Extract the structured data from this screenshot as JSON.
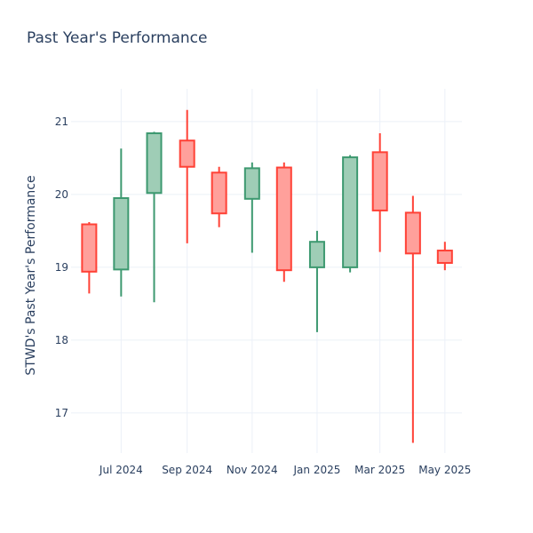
{
  "chart_data": {
    "type": "candlestick",
    "title": "Past Year's Performance",
    "ylabel": "STWD's Past Year's Performance",
    "xlabel": "",
    "ylim": [
      16.45,
      21.45
    ],
    "yticks": [
      17,
      18,
      19,
      20,
      21
    ],
    "xticks": [
      {
        "date": "2024-07-01",
        "label": "Jul 2024"
      },
      {
        "date": "2024-09-01",
        "label": "Sep 2024"
      },
      {
        "date": "2024-11-01",
        "label": "Nov 2024"
      },
      {
        "date": "2025-01-01",
        "label": "Jan 2025"
      },
      {
        "date": "2025-03-01",
        "label": "Mar 2025"
      },
      {
        "date": "2025-05-01",
        "label": "May 2025"
      }
    ],
    "xrange": [
      "2024-05-15",
      "2025-05-17"
    ],
    "grid": true,
    "colors": {
      "increasing": "#3d9970",
      "increasing_fill": "#9fcdb6",
      "decreasing": "#ff4136",
      "decreasing_fill": "#ffa09b"
    },
    "candles": [
      {
        "date": "2024-06-01",
        "open": 19.59,
        "high": 19.62,
        "low": 18.64,
        "close": 18.94
      },
      {
        "date": "2024-07-01",
        "open": 18.97,
        "high": 20.63,
        "low": 18.6,
        "close": 19.95
      },
      {
        "date": "2024-08-01",
        "open": 20.02,
        "high": 20.86,
        "low": 18.52,
        "close": 20.84
      },
      {
        "date": "2024-09-01",
        "open": 20.74,
        "high": 21.16,
        "low": 19.33,
        "close": 20.38
      },
      {
        "date": "2024-10-01",
        "open": 20.3,
        "high": 20.38,
        "low": 19.55,
        "close": 19.74
      },
      {
        "date": "2024-11-01",
        "open": 19.94,
        "high": 20.44,
        "low": 19.2,
        "close": 20.36
      },
      {
        "date": "2024-12-01",
        "open": 20.37,
        "high": 20.44,
        "low": 18.8,
        "close": 18.96
      },
      {
        "date": "2025-01-01",
        "open": 19.0,
        "high": 19.5,
        "low": 18.11,
        "close": 19.35
      },
      {
        "date": "2025-02-01",
        "open": 19.0,
        "high": 20.54,
        "low": 18.93,
        "close": 20.51
      },
      {
        "date": "2025-03-01",
        "open": 20.58,
        "high": 20.84,
        "low": 19.21,
        "close": 19.78
      },
      {
        "date": "2025-04-01",
        "open": 19.75,
        "high": 19.98,
        "low": 16.59,
        "close": 19.19
      },
      {
        "date": "2025-05-01",
        "open": 19.23,
        "high": 19.35,
        "low": 18.96,
        "close": 19.06
      }
    ]
  }
}
